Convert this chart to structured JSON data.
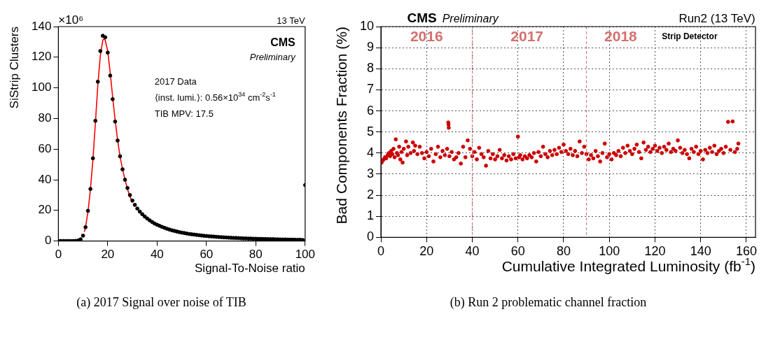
{
  "chart_data": [
    {
      "type": "scatter",
      "title": "CMS",
      "subtitle": "Preliminary",
      "xlabel": "Signal-To-Noise ratio",
      "ylabel": "SiStrip Clusters",
      "xlim": [
        0,
        100
      ],
      "xticks": [
        0,
        20,
        40,
        60,
        80,
        100
      ],
      "ylim": [
        0,
        140
      ],
      "yticks": [
        0,
        20,
        40,
        60,
        80,
        100,
        120,
        140
      ],
      "grid": false,
      "marker": "circle",
      "annotations": [
        "×10⁶",
        "13 TeV",
        "2017 Data",
        "⟨inst. lumi.⟩: 0.56×10$^{34}$ cm$^{-2}$s$^{-1}$",
        "TIB MPV: 17.5",
        "(a) 2017 Signal over noise of TIB"
      ],
      "series": [
        {
          "type": "scatter",
          "color": "#000000",
          "x": [
            0,
            1,
            2,
            3,
            4,
            5,
            6,
            7,
            8,
            9,
            10,
            11,
            12,
            13,
            14,
            15,
            16,
            17,
            18,
            19,
            20,
            21,
            22,
            23,
            24,
            25,
            26,
            27,
            28,
            29,
            30,
            31,
            32,
            33,
            34,
            35,
            36,
            37,
            38,
            39,
            40,
            41,
            42,
            43,
            44,
            45,
            46,
            47,
            48,
            49,
            50,
            51,
            52,
            53,
            54,
            55,
            56,
            57,
            58,
            59,
            60,
            61,
            62,
            63,
            64,
            65,
            66,
            67,
            68,
            69,
            70,
            71,
            72,
            73,
            74,
            75,
            76,
            77,
            78,
            79,
            80,
            81,
            82,
            83,
            84,
            85,
            86,
            87,
            88,
            89,
            90,
            91,
            92,
            93,
            94,
            95,
            96,
            97,
            98,
            99,
            100
          ],
          "values": [
            0,
            0,
            0,
            0,
            0,
            0,
            0,
            0.1,
            0.3,
            1.1,
            3.5,
            9,
            19.7,
            34,
            54,
            78.5,
            104,
            124,
            134,
            133,
            123,
            108,
            92.6,
            78,
            65.6,
            55.3,
            46.8,
            40,
            34.6,
            30,
            26.4,
            23.6,
            21.2,
            19.2,
            17.5,
            16,
            14.7,
            13.5,
            12.4,
            11.4,
            10.6,
            9.9,
            9.2,
            8.6,
            8,
            7.5,
            7,
            6.6,
            6.2,
            5.8,
            5.5,
            5.2,
            4.9,
            4.6,
            4.4,
            4.2,
            4,
            3.8,
            3.6,
            3.4,
            3.3,
            3.1,
            3,
            2.9,
            2.7,
            2.6,
            2.5,
            2.4,
            2.3,
            2.2,
            2.1,
            2,
            2,
            1.9,
            1.8,
            1.7,
            1.7,
            1.6,
            1.6,
            1.5,
            1.5,
            1.4,
            1.4,
            1.3,
            1.3,
            1.2,
            1.2,
            1.2,
            1.1,
            1.1,
            1,
            1,
            1,
            0.9,
            0.9,
            0.9,
            0.8,
            0.8,
            0.8,
            0.7,
            36.5
          ]
        },
        {
          "type": "line",
          "marker": "none",
          "color": "#ff0000",
          "x": [
            10.5,
            11,
            12,
            13,
            14,
            15,
            16,
            17,
            18,
            18.5,
            19,
            20,
            21,
            22,
            23,
            24,
            25,
            26,
            27,
            28,
            29,
            30
          ],
          "values": [
            6,
            9,
            19,
            34,
            53,
            77,
            102,
            121,
            131,
            132,
            131,
            124,
            110,
            94,
            79,
            66,
            55,
            47,
            40,
            34,
            29,
            25
          ]
        }
      ]
    },
    {
      "type": "scatter",
      "title": "CMS",
      "subtitle": "Preliminary",
      "xlabel": "Cumulative Integrated Luminosity (fb$^{-1}$)",
      "ylabel": "Bad Components Fraction (%)",
      "xlim": [
        0,
        164
      ],
      "xticks": [
        0,
        20,
        40,
        60,
        80,
        100,
        120,
        140,
        160
      ],
      "ylim": [
        0,
        10
      ],
      "yticks": [
        0,
        1,
        2,
        3,
        4,
        5,
        6,
        7,
        8,
        9,
        10
      ],
      "grid": true,
      "marker": "circle",
      "ref_lines": [
        {
          "axis": "x",
          "value": 40,
          "color": "#d46a6a",
          "line_style": "dashed"
        },
        {
          "axis": "x",
          "value": 90,
          "color": "#d46a6a",
          "line_style": "dashed"
        }
      ],
      "annotations": [
        "Run2 (13 TeV)",
        "2016",
        "2017",
        "2018",
        "Strip Detector",
        "(b) Run 2 problematic channel fraction"
      ],
      "series": [
        {
          "type": "scatter",
          "color": "#cc0000",
          "x": [
            0.3,
            0.8,
            1.2,
            1.8,
            2.3,
            3,
            3.5,
            4,
            4.5,
            5,
            5.5,
            6,
            6.5,
            7,
            7.5,
            8,
            8.5,
            9,
            9.5,
            10,
            11,
            11.5,
            12,
            13,
            14,
            14.5,
            15,
            16,
            17,
            18,
            19,
            20,
            21,
            22,
            23,
            24,
            25,
            26,
            27,
            28,
            29,
            29.5,
            29.6,
            29.7,
            30,
            31,
            32,
            33,
            34,
            35,
            36,
            37,
            38,
            39,
            40,
            41,
            42,
            43,
            44,
            45,
            46,
            47,
            48,
            49,
            50,
            51,
            52,
            53,
            54,
            55,
            56,
            57,
            58,
            59,
            60,
            60.5,
            61,
            62,
            63,
            64,
            65,
            66,
            67,
            68,
            69,
            70,
            71,
            72,
            73,
            74,
            75,
            76,
            77,
            78,
            79,
            80,
            81,
            82,
            83,
            84,
            85,
            86,
            87,
            88,
            89,
            90,
            91,
            92,
            93,
            94,
            95,
            96,
            97,
            98,
            99,
            100,
            101,
            102,
            103,
            104,
            105,
            106,
            107,
            108,
            109,
            110,
            111,
            112,
            113,
            114,
            115,
            116,
            117,
            118,
            119,
            120,
            121,
            122,
            123,
            124,
            125,
            126,
            127,
            128,
            129,
            130,
            131,
            132,
            133,
            134,
            135,
            136,
            137,
            138,
            139,
            140,
            141,
            142,
            143,
            144,
            145,
            146,
            147,
            148,
            149,
            150,
            151,
            152,
            153,
            154,
            155,
            156,
            156.5
          ],
          "values": [
            3.55,
            3.65,
            3.7,
            3.8,
            3.75,
            3.9,
            4,
            3.85,
            4.1,
            3.95,
            4.2,
            3.8,
            4.65,
            4,
            3.9,
            4.3,
            3.7,
            4.05,
            3.55,
            4.2,
            4.55,
            3.9,
            4.3,
            4,
            4.5,
            4.1,
            4.35,
            3.95,
            4.3,
            4,
            3.75,
            4.05,
            3.85,
            4.2,
            3.6,
            3.95,
            4.3,
            3.8,
            4.1,
            3.9,
            4.2,
            5.45,
            5.35,
            5.2,
            3.85,
            4.05,
            3.7,
            3.8,
            4,
            3.5,
            4.3,
            3.8,
            4.6,
            4.2,
            3.85,
            4.05,
            3.7,
            4.25,
            3.95,
            3.8,
            3.4,
            4.1,
            3.75,
            3.95,
            3.7,
            3.85,
            4.15,
            3.75,
            3.9,
            3.65,
            3.85,
            3.7,
            3.95,
            3.75,
            4.78,
            3.8,
            3.9,
            3.7,
            3.85,
            3.75,
            3.9,
            3.8,
            4,
            3.6,
            4.05,
            3.85,
            4.3,
            3.95,
            3.8,
            4.1,
            3.9,
            4.15,
            3.95,
            4.25,
            4.05,
            4.4,
            4.1,
            3.95,
            4.2,
            3.9,
            4.1,
            3.85,
            4.55,
            4,
            4.3,
            3.95,
            3.7,
            3.9,
            3.75,
            4.1,
            3.85,
            3.6,
            4,
            4.45,
            3.8,
            3.95,
            3.7,
            4,
            3.9,
            4.1,
            3.85,
            4.25,
            4,
            4.35,
            4.1,
            3.95,
            4.2,
            4.4,
            4.05,
            3.75,
            4.5,
            4.15,
            4.3,
            4.05,
            4.2,
            4.35,
            4.1,
            4.25,
            4,
            4.3,
            4.15,
            4.45,
            4.05,
            4.2,
            4.1,
            4.6,
            4.25,
            4,
            4.15,
            3.95,
            3.75,
            4.2,
            4.05,
            4.3,
            3.95,
            4.1,
            3.7,
            4.15,
            4,
            4.25,
            4.05,
            4.35,
            3.95,
            4.1,
            4.2,
            4,
            4.3,
            5.48,
            4.15,
            5.5,
            4.05,
            4.2,
            4.45
          ]
        }
      ]
    }
  ]
}
